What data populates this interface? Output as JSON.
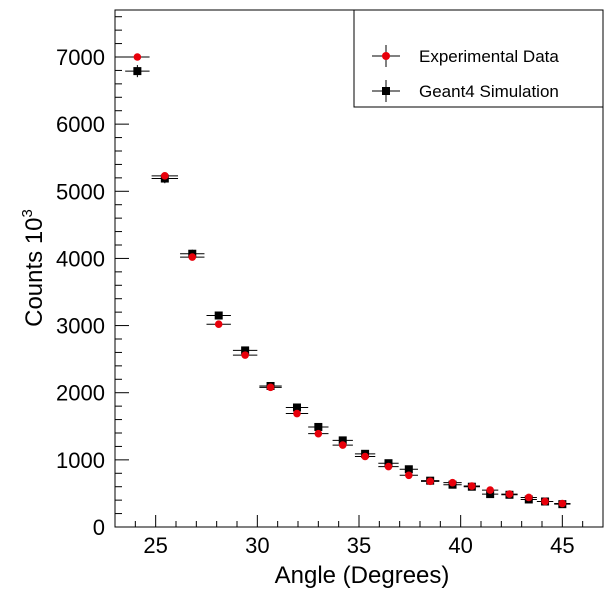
{
  "chart_data": {
    "type": "scatter",
    "title": "",
    "xlabel": "Angle (Degrees)",
    "ylabel": "Counts 10",
    "ylabel_superscript": "3",
    "xlim": [
      23.0,
      47.0
    ],
    "ylim": [
      0,
      7700
    ],
    "x_ticks": [
      25,
      30,
      35,
      40,
      45
    ],
    "y_ticks": [
      0,
      1000,
      2000,
      3000,
      4000,
      5000,
      6000,
      7000
    ],
    "x_tick_labels": [
      "25",
      "30",
      "35",
      "40",
      "45"
    ],
    "y_tick_labels": [
      "0",
      "1000",
      "2000",
      "3000",
      "4000",
      "5000",
      "6000",
      "7000"
    ],
    "grid": false,
    "legend_position": "top-right",
    "series": [
      {
        "name": "Experimental Data",
        "marker": "circle",
        "color": "#e8000b",
        "x": [
          24.1,
          25.45,
          26.8,
          28.1,
          29.4,
          30.65,
          31.95,
          33.0,
          34.2,
          35.3,
          36.45,
          37.45,
          38.5,
          39.6,
          40.55,
          41.45,
          42.4,
          43.35,
          44.15,
          45.0
        ],
        "y": [
          7000,
          5230,
          4020,
          3020,
          2560,
          2080,
          1690,
          1390,
          1220,
          1050,
          900,
          770,
          680,
          660,
          610,
          550,
          490,
          440,
          380,
          350
        ]
      },
      {
        "name": "Geant4 Simulation",
        "marker": "square",
        "color": "#000000",
        "x": [
          24.1,
          25.45,
          26.8,
          28.1,
          29.4,
          30.65,
          31.95,
          33.0,
          34.2,
          35.3,
          36.45,
          37.45,
          38.5,
          39.6,
          40.55,
          41.45,
          42.4,
          43.35,
          44.15,
          45.0
        ],
        "y": [
          6790,
          5190,
          4070,
          3150,
          2630,
          2100,
          1780,
          1490,
          1290,
          1090,
          950,
          860,
          690,
          630,
          600,
          490,
          480,
          410,
          380,
          340
        ]
      }
    ],
    "x_errors": [
      0.6,
      0.65,
      0.6,
      0.6,
      0.6,
      0.55,
      0.55,
      0.5,
      0.5,
      0.5,
      0.5,
      0.45,
      0.45,
      0.45,
      0.4,
      0.4,
      0.4,
      0.4,
      0.4,
      0.4
    ],
    "y_errors": [
      90,
      70,
      60,
      50,
      45,
      40,
      35,
      30,
      30,
      25,
      25,
      20,
      20,
      20,
      20,
      20,
      15,
      15,
      15,
      15
    ]
  }
}
